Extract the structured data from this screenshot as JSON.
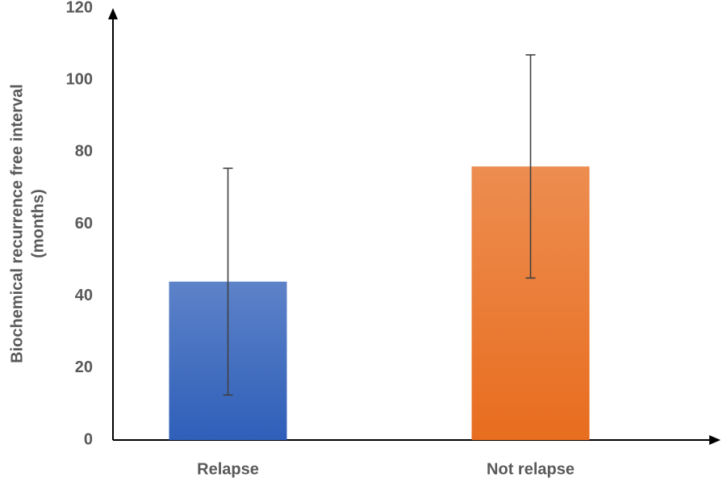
{
  "chart_data": {
    "type": "bar",
    "y_label": [
      "Biochemical recurrence free interval",
      "(months)"
    ],
    "categories": [
      "Relapse",
      "Not relapse"
    ],
    "values": [
      44,
      76
    ],
    "errors": [
      31.5,
      31
    ],
    "colors": [
      "#2f5fb9",
      "#e86d1f"
    ],
    "ylim": [
      0,
      120
    ],
    "yticks": [
      0,
      20,
      40,
      60,
      80,
      100,
      120
    ]
  }
}
